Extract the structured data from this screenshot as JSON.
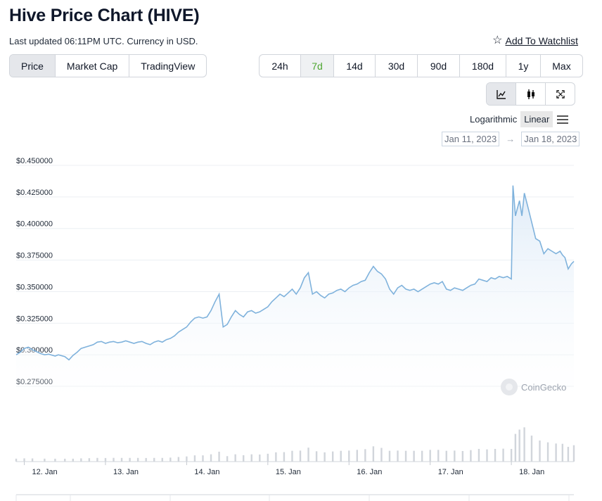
{
  "header": {
    "title": "Hive Price Chart (HIVE)",
    "subtitle": "Last updated 06:11PM UTC. Currency in USD.",
    "watchlist_label": "Add To Watchlist"
  },
  "type_tabs": [
    {
      "label": "Price",
      "active": true
    },
    {
      "label": "Market Cap",
      "active": false
    },
    {
      "label": "TradingView",
      "active": false
    }
  ],
  "range_tabs": [
    {
      "label": "24h",
      "active": false
    },
    {
      "label": "7d",
      "active": true
    },
    {
      "label": "14d",
      "active": false
    },
    {
      "label": "30d",
      "active": false
    },
    {
      "label": "90d",
      "active": false
    },
    {
      "label": "180d",
      "active": false
    },
    {
      "label": "1y",
      "active": false
    },
    {
      "label": "Max",
      "active": false
    }
  ],
  "view_buttons": [
    {
      "icon": "line-chart-icon",
      "active": true
    },
    {
      "icon": "candlestick-icon",
      "active": false
    },
    {
      "icon": "fullscreen-icon",
      "active": false
    }
  ],
  "scale": {
    "logarithmic": "Logarithmic",
    "linear": "Linear",
    "active": "Linear"
  },
  "date_range": {
    "from": "Jan 11, 2023",
    "arrow": "→",
    "to": "Jan 18, 2023"
  },
  "watermark": "CoinGecko",
  "colors": {
    "line": "#7fb2dc",
    "area": "#eaf2fb",
    "accent": "#4da62f",
    "volume": "#d1d5db"
  },
  "chart_data": {
    "type": "area",
    "title": "",
    "ylabel": "",
    "ylim": [
      0.265,
      0.45
    ],
    "yticks": [
      0.45,
      0.425,
      0.4,
      0.375,
      0.35,
      0.325,
      0.3,
      0.275
    ],
    "ytick_labels": [
      "$0.450000",
      "$0.425000",
      "$0.400000",
      "$0.375000",
      "$0.350000",
      "$0.325000",
      "$0.300000",
      "$0.275000"
    ],
    "xlim": [
      11.9,
      18.77
    ],
    "xticks": [
      12,
      13,
      14,
      15,
      16,
      17,
      18
    ],
    "xtick_labels": [
      "12. Jan",
      "13. Jan",
      "14. Jan",
      "15. Jan",
      "16. Jan",
      "17. Jan",
      "18. Jan"
    ],
    "grid": true,
    "series": [
      {
        "x": [
          11.9,
          11.95,
          12.0,
          12.05,
          12.1,
          12.2,
          12.25,
          12.3,
          12.38,
          12.42,
          12.5,
          12.55,
          12.6,
          12.65,
          12.7,
          12.75,
          12.8,
          12.85,
          12.9,
          12.95,
          13.0,
          13.05,
          13.1,
          13.15,
          13.2,
          13.25,
          13.3,
          13.35,
          13.4,
          13.45,
          13.5,
          13.55,
          13.6,
          13.65,
          13.7,
          13.75,
          13.8,
          13.85,
          13.9,
          13.95,
          14.0,
          14.05,
          14.1,
          14.15,
          14.2,
          14.25,
          14.3,
          14.35,
          14.4,
          14.45,
          14.5,
          14.55,
          14.6,
          14.65,
          14.7,
          14.75,
          14.8,
          14.85,
          14.9,
          14.95,
          15.0,
          15.05,
          15.1,
          15.15,
          15.2,
          15.25,
          15.3,
          15.35,
          15.4,
          15.45,
          15.5,
          15.55,
          15.6,
          15.65,
          15.7,
          15.75,
          15.8,
          15.85,
          15.9,
          15.95,
          16.0,
          16.05,
          16.1,
          16.15,
          16.2,
          16.25,
          16.3,
          16.35,
          16.4,
          16.45,
          16.5,
          16.55,
          16.6,
          16.65,
          16.7,
          16.75,
          16.8,
          16.85,
          16.9,
          16.95,
          17.0,
          17.05,
          17.1,
          17.15,
          17.2,
          17.25,
          17.3,
          17.35,
          17.4,
          17.45,
          17.5,
          17.55,
          17.6,
          17.65,
          17.7,
          17.75,
          17.8,
          17.85,
          17.9,
          17.95,
          18.0,
          18.02,
          18.05,
          18.07,
          18.1,
          18.13,
          18.16,
          18.2,
          18.25,
          18.3,
          18.35,
          18.4,
          18.45,
          18.5,
          18.55,
          18.6,
          18.63,
          18.66,
          18.7,
          18.74,
          18.77
        ],
        "values": [
          0.3,
          0.302,
          0.305,
          0.306,
          0.304,
          0.301,
          0.3,
          0.3005,
          0.299,
          0.3,
          0.2985,
          0.296,
          0.2995,
          0.302,
          0.305,
          0.306,
          0.307,
          0.308,
          0.31,
          0.3105,
          0.309,
          0.31,
          0.3105,
          0.3095,
          0.31,
          0.311,
          0.31,
          0.309,
          0.31,
          0.3105,
          0.309,
          0.308,
          0.31,
          0.311,
          0.31,
          0.312,
          0.313,
          0.315,
          0.318,
          0.32,
          0.322,
          0.326,
          0.329,
          0.33,
          0.329,
          0.33,
          0.335,
          0.342,
          0.348,
          0.322,
          0.324,
          0.33,
          0.335,
          0.332,
          0.33,
          0.334,
          0.335,
          0.333,
          0.334,
          0.336,
          0.338,
          0.342,
          0.345,
          0.348,
          0.346,
          0.349,
          0.352,
          0.348,
          0.353,
          0.361,
          0.365,
          0.348,
          0.35,
          0.347,
          0.345,
          0.348,
          0.349,
          0.351,
          0.352,
          0.35,
          0.353,
          0.355,
          0.356,
          0.358,
          0.359,
          0.365,
          0.37,
          0.366,
          0.364,
          0.36,
          0.352,
          0.348,
          0.353,
          0.355,
          0.352,
          0.351,
          0.352,
          0.35,
          0.352,
          0.354,
          0.356,
          0.357,
          0.356,
          0.358,
          0.352,
          0.351,
          0.353,
          0.352,
          0.351,
          0.353,
          0.355,
          0.356,
          0.36,
          0.359,
          0.358,
          0.361,
          0.36,
          0.362,
          0.361,
          0.362,
          0.36,
          0.434,
          0.41,
          0.415,
          0.422,
          0.41,
          0.428,
          0.418,
          0.405,
          0.392,
          0.39,
          0.38,
          0.384,
          0.382,
          0.38,
          0.382,
          0.379,
          0.377,
          0.368,
          0.372,
          0.374
        ]
      }
    ],
    "volume": [
      1,
      1,
      1,
      1,
      1,
      1,
      1,
      1,
      1,
      1,
      1,
      1,
      1,
      1,
      1,
      1,
      1,
      1,
      1,
      1,
      1,
      1,
      1,
      1,
      1,
      1,
      1,
      1,
      1,
      1,
      1,
      1,
      1,
      1,
      1,
      1,
      1,
      1,
      1,
      1,
      1,
      1,
      1,
      1,
      1,
      1,
      1,
      1,
      1,
      1,
      1,
      1,
      1,
      1,
      1,
      1,
      1,
      1,
      1,
      1,
      1,
      1,
      1,
      1,
      1,
      1,
      1,
      1,
      1,
      1,
      1,
      1,
      1,
      1,
      1,
      1,
      1,
      1,
      1,
      1,
      1,
      1,
      1,
      1,
      1,
      1,
      1,
      1,
      1,
      1,
      1,
      1,
      1,
      1,
      1,
      1,
      1,
      1,
      1,
      1,
      1,
      1,
      1,
      1,
      1,
      1,
      1,
      1,
      1,
      1,
      1,
      1,
      1,
      1,
      1,
      1,
      1,
      1,
      1,
      1,
      1,
      1,
      1,
      1,
      1,
      1,
      1,
      1,
      1,
      1,
      1,
      1,
      1,
      1,
      1,
      1,
      1,
      1,
      1,
      1,
      1,
      1,
      1,
      1,
      1,
      1,
      1
    ]
  }
}
